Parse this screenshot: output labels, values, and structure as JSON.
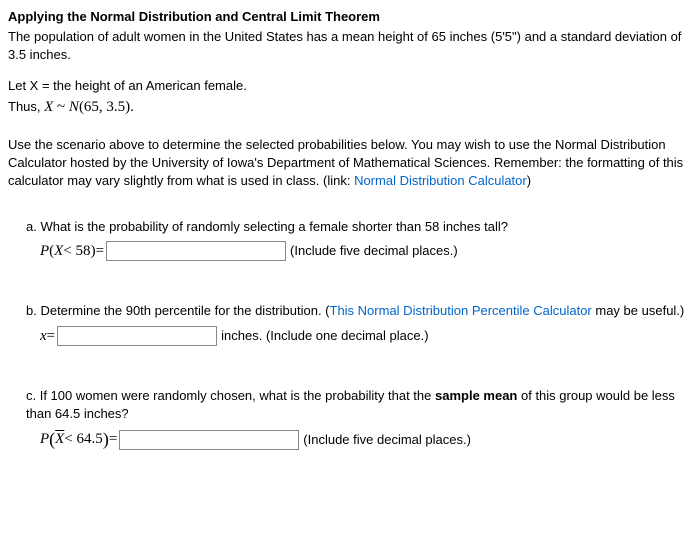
{
  "title": "Applying the Normal Distribution and Central Limit Theorem",
  "intro": "The population of adult women in the United States has a mean height of 65 inches (5'5\") and a standard deviation of 3.5 inches.",
  "letX": "Let X = the height of an American female.",
  "thusPrefix": "Thus, ",
  "thusMath": {
    "var": "X",
    "tilde": " ~ ",
    "dist": "N",
    "params": "(65, 3.5)."
  },
  "instructions": {
    "text1": "Use the scenario above to determine the selected probabilities below. You may wish to use the Normal Distribution Calculator hosted by the University of Iowa's Department of Mathematical Sciences. Remember: the formatting of this calculator may vary slightly from what is used in class. (link: ",
    "linkText": "Normal Distribution Calculator",
    "text2": ")"
  },
  "questionA": {
    "label": "a. What is the probability of randomly selecting a female shorter than 58 inches tall?",
    "mathP": "P",
    "mathParen1": "(",
    "mathVar": "X",
    "mathOp": " < 58",
    "mathParen2": ")",
    "equals": " = ",
    "hint": "(Include five decimal places.)"
  },
  "questionB": {
    "label1": "b. Determine the 90th percentile for the distribution. (",
    "linkText": "This Normal Distribution Percentile Calculator",
    "label2": " may be useful.)",
    "mathVar": "x",
    "equals": " = ",
    "unit": "inches. (Include one decimal place.)"
  },
  "questionC": {
    "label1": "c. If 100 women were randomly chosen, what is the probability that the ",
    "labelBold": "sample mean",
    "label2": " of this group would be less than 64.5 inches?",
    "mathP": "P",
    "mathVar": "X",
    "mathOp": " < 64.5",
    "equals": " = ",
    "hint": "(Include five decimal places.)"
  },
  "colors": {
    "link": "#0066cc",
    "text": "#000000",
    "background": "#ffffff",
    "inputBorder": "#888888"
  }
}
